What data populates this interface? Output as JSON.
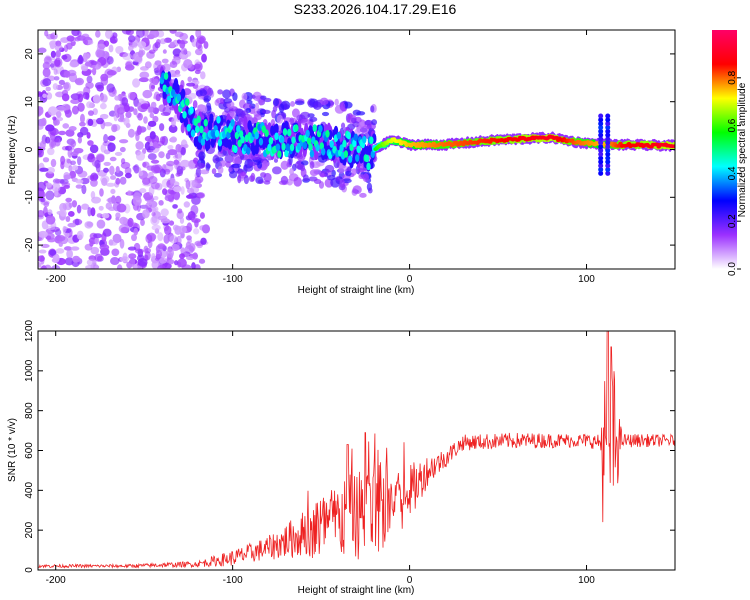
{
  "title": "S233.2026.104.17.29.E16",
  "chart_data": [
    {
      "type": "heatmap",
      "xlabel": "Height of straight line (km)",
      "ylabel": "Frequency (Hz)",
      "xlim": [
        -210,
        150
      ],
      "ylim": [
        -25,
        25
      ],
      "xticks": [
        -200,
        -100,
        0,
        100
      ],
      "yticks": [
        -20,
        -10,
        0,
        10,
        20
      ],
      "colorbar": {
        "label": "Normalized spectral amplitude",
        "range": [
          0,
          1
        ],
        "ticks": [
          "0.0",
          "0.2",
          "0.4",
          "0.6",
          "0.8"
        ],
        "colors": [
          "#ffffff",
          "#9b30ff",
          "#0000ff",
          "#00ffff",
          "#00ff00",
          "#ffff00",
          "#ff0000",
          "#ff0066"
        ]
      },
      "ridge": {
        "description": "dominant frequency track",
        "x": [
          -135,
          -120,
          -100,
          -80,
          -60,
          -40,
          -25,
          -10,
          0,
          20,
          50,
          80,
          95,
          110,
          120,
          150
        ],
        "freq": [
          13,
          4,
          3,
          2,
          2,
          1,
          -1,
          2,
          1,
          1,
          2,
          2.5,
          1.5,
          1,
          1,
          0.8
        ],
        "amplitude": [
          0.35,
          0.3,
          0.3,
          0.3,
          0.3,
          0.3,
          0.5,
          0.7,
          0.75,
          0.8,
          0.85,
          0.9,
          0.8,
          0.75,
          0.85,
          0.9
        ]
      }
    },
    {
      "type": "line",
      "xlabel": "Height of straight line (km)",
      "ylabel": "SNR (10 * v/v)",
      "xlim": [
        -210,
        150
      ],
      "ylim": [
        0,
        1200
      ],
      "xticks": [
        -200,
        -100,
        0,
        100
      ],
      "yticks": [
        0,
        200,
        400,
        600,
        800,
        1000,
        1200
      ],
      "color": "#ee2222",
      "envelope": {
        "x": [
          -210,
          -160,
          -120,
          -100,
          -80,
          -60,
          -40,
          -20,
          0,
          10,
          20,
          30,
          60,
          100,
          108,
          110,
          112,
          114,
          120,
          150
        ],
        "mean": [
          20,
          20,
          30,
          60,
          110,
          180,
          250,
          300,
          380,
          500,
          560,
          640,
          650,
          650,
          640,
          600,
          320,
          640,
          650,
          650
        ],
        "noise": [
          8,
          8,
          15,
          40,
          60,
          120,
          200,
          250,
          150,
          80,
          50,
          40,
          40,
          35,
          40,
          600,
          40,
          500,
          35,
          30
        ]
      },
      "peaks": [
        {
          "x": -35,
          "y": 630
        },
        {
          "x": -25,
          "y": 690
        },
        {
          "x": 112,
          "y": 1200
        },
        {
          "x": 114,
          "y": 1120
        }
      ]
    }
  ]
}
